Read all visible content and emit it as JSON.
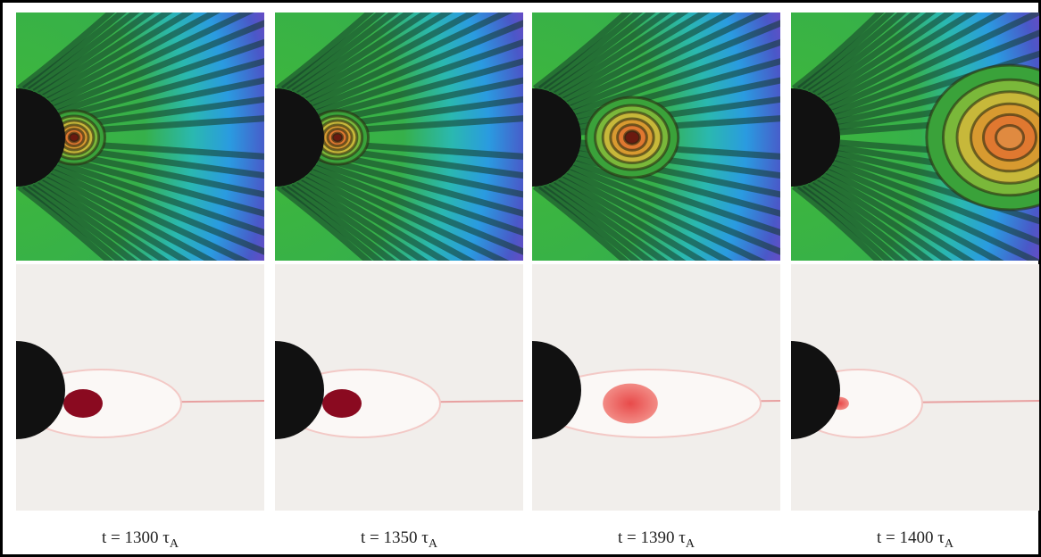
{
  "figure": {
    "panels": [
      {
        "caption": {
          "text": "t = 1300 τ",
          "subscript": "A"
        }
      },
      {
        "caption": {
          "text": "t = 1350 τ",
          "subscript": "A"
        }
      },
      {
        "caption": {
          "text": "t = 1390 τ",
          "subscript": "A"
        }
      },
      {
        "caption": {
          "text": "t = 1400 τ",
          "subscript": "A"
        }
      }
    ]
  }
}
